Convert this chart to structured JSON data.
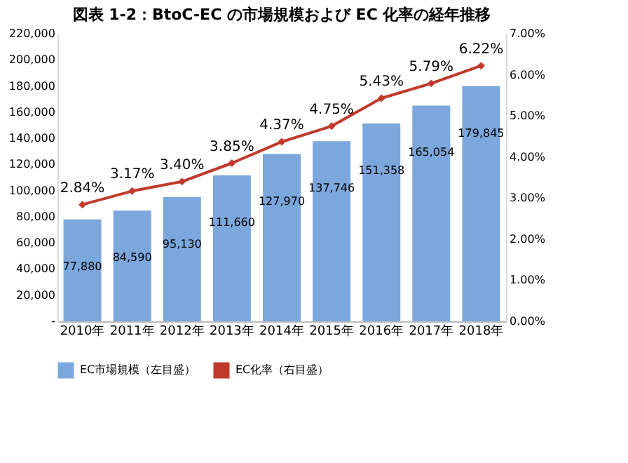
{
  "chart_data": {
    "type": "bar",
    "title": "図表 1-2：BtoC-EC の市場規模および EC 化率の経年推移",
    "categories": [
      "2010年",
      "2011年",
      "2012年",
      "2013年",
      "2014年",
      "2015年",
      "2016年",
      "2017年",
      "2018年"
    ],
    "series": [
      {
        "name": "EC市場規模（左目盛）",
        "color": "#7ba7dc",
        "values": [
          77880,
          84590,
          95130,
          111660,
          127970,
          137746,
          151358,
          165054,
          179845
        ],
        "value_labels": [
          "77,880",
          "84,590",
          "95,130",
          "111,660",
          "127,970",
          "137,746",
          "151,358",
          "165,054",
          "179,845"
        ]
      },
      {
        "name": "EC化率（右目盛）",
        "type": "line",
        "axis": "y2",
        "color": "#c0392b",
        "marker": "diamond",
        "values": [
          2.84,
          3.17,
          3.4,
          3.85,
          4.37,
          4.75,
          5.43,
          5.79,
          6.22
        ],
        "value_labels": [
          "2.84%",
          "3.17%",
          "3.40%",
          "3.85%",
          "4.37%",
          "4.75%",
          "5.43%",
          "5.79%",
          "6.22%"
        ]
      }
    ],
    "ylim": [
      0,
      220000
    ],
    "yticks": [
      {
        "value": 0,
        "label": "-"
      },
      {
        "value": 20000,
        "label": "20,000"
      },
      {
        "value": 40000,
        "label": "40,000"
      },
      {
        "value": 60000,
        "label": "60,000"
      },
      {
        "value": 80000,
        "label": "80,000"
      },
      {
        "value": 100000,
        "label": "100,000"
      },
      {
        "value": 120000,
        "label": "120,000"
      },
      {
        "value": 140000,
        "label": "140,000"
      },
      {
        "value": 160000,
        "label": "160,000"
      },
      {
        "value": 180000,
        "label": "180,000"
      },
      {
        "value": 200000,
        "label": "200,000"
      },
      {
        "value": 220000,
        "label": "220,000"
      }
    ],
    "y2lim": [
      0,
      7
    ],
    "y2ticks": [
      {
        "value": 0,
        "label": "0.00%"
      },
      {
        "value": 1,
        "label": "1.00%"
      },
      {
        "value": 2,
        "label": "2.00%"
      },
      {
        "value": 3,
        "label": "3.00%"
      },
      {
        "value": 4,
        "label": "4.00%"
      },
      {
        "value": 5,
        "label": "5.00%"
      },
      {
        "value": 6,
        "label": "6.00%"
      },
      {
        "value": 7,
        "label": "7.00%"
      }
    ],
    "grid": false,
    "legend": "bottom"
  }
}
